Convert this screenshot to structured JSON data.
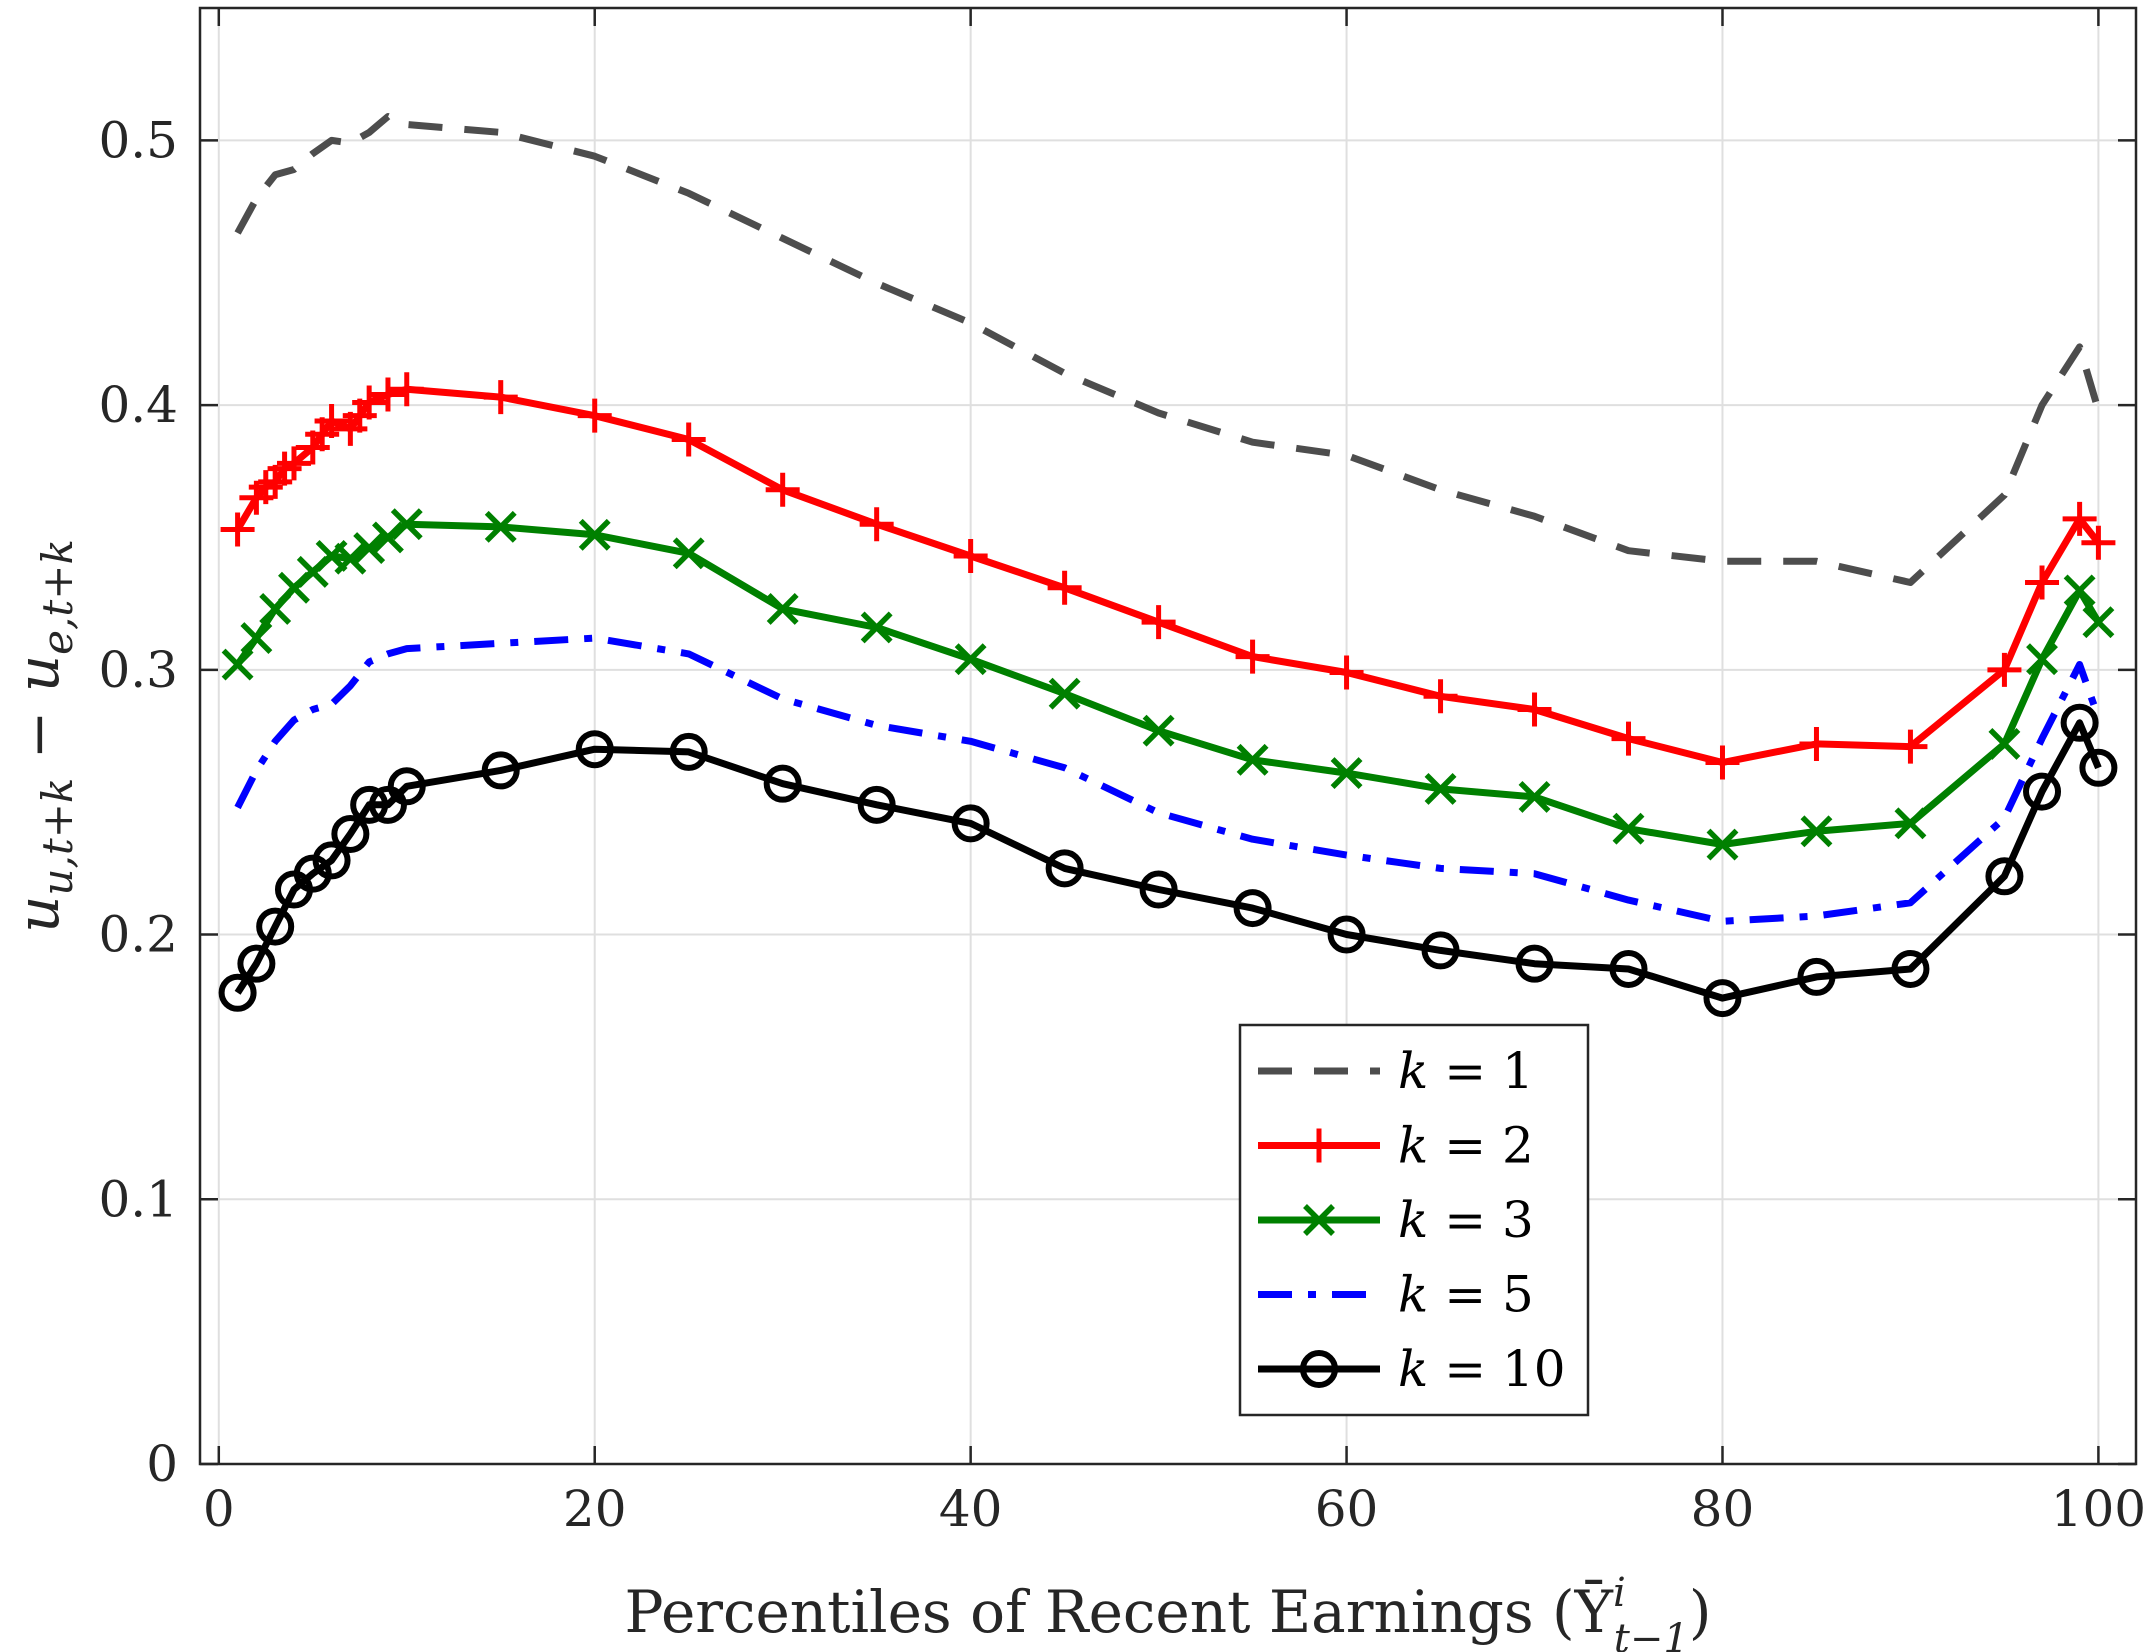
{
  "chart_data": {
    "type": "line",
    "xlabel": "Percentiles of Recent Earnings (Ȳ",
    "xlabel_sup": "i",
    "xlabel_sub": "t−1",
    "xlabel_close": ")",
    "ylabel": "u_{u,t+k} − u_{e,t+k}",
    "ylabel_parts": [
      "u",
      "u,t+k",
      " − ",
      "u",
      "e,t+k"
    ],
    "xlim": [
      -1,
      102
    ],
    "ylim": [
      0,
      0.55
    ],
    "xticks": [
      0,
      20,
      40,
      60,
      80,
      100
    ],
    "yticks": [
      0,
      0.1,
      0.2,
      0.3,
      0.4,
      0.5
    ],
    "ytick_labels": [
      "0",
      "0.1",
      "0.2",
      "0.3",
      "0.4",
      "0.5"
    ],
    "grid": true,
    "legend_position": "lower-center-right",
    "series": [
      {
        "name": "k = 1",
        "legend_var": "k",
        "legend_eq": " = 1",
        "color": "#4d4d4d",
        "style": "dashed",
        "marker": "none",
        "x": [
          1,
          2,
          3,
          4,
          5,
          6,
          7,
          8,
          9,
          10,
          15,
          20,
          25,
          30,
          35,
          40,
          45,
          50,
          55,
          60,
          65,
          70,
          75,
          80,
          85,
          90,
          95,
          97,
          99,
          100
        ],
        "y": [
          0.465,
          0.478,
          0.487,
          0.489,
          0.495,
          0.5,
          0.499,
          0.503,
          0.509,
          0.506,
          0.503,
          0.494,
          0.48,
          0.463,
          0.446,
          0.431,
          0.412,
          0.397,
          0.386,
          0.381,
          0.368,
          0.358,
          0.345,
          0.341,
          0.341,
          0.333,
          0.366,
          0.4,
          0.422,
          0.398
        ]
      },
      {
        "name": "k = 2",
        "legend_var": "k",
        "legend_eq": " = 2",
        "color": "#ff0000",
        "style": "solid",
        "marker": "plus",
        "x": [
          1,
          2,
          2.5,
          3,
          3.5,
          4,
          5,
          5.5,
          6,
          7,
          7.5,
          8,
          9,
          10,
          15,
          20,
          25,
          30,
          35,
          40,
          45,
          50,
          55,
          60,
          65,
          70,
          75,
          80,
          85,
          90,
          95,
          97,
          99,
          100
        ],
        "y": [
          0.353,
          0.365,
          0.369,
          0.371,
          0.376,
          0.378,
          0.384,
          0.389,
          0.394,
          0.391,
          0.396,
          0.401,
          0.404,
          0.406,
          0.403,
          0.396,
          0.387,
          0.368,
          0.355,
          0.343,
          0.331,
          0.318,
          0.305,
          0.299,
          0.29,
          0.285,
          0.274,
          0.265,
          0.272,
          0.271,
          0.3,
          0.333,
          0.357,
          0.348
        ]
      },
      {
        "name": "k = 3",
        "legend_var": "k",
        "legend_eq": " = 3",
        "color": "#008000",
        "style": "solid",
        "marker": "x",
        "x": [
          1,
          2,
          3,
          4,
          5,
          6,
          7,
          8,
          9,
          10,
          15,
          20,
          25,
          30,
          35,
          40,
          45,
          50,
          55,
          60,
          65,
          70,
          75,
          80,
          85,
          90,
          95,
          97,
          99,
          100
        ],
        "y": [
          0.302,
          0.312,
          0.323,
          0.331,
          0.337,
          0.343,
          0.342,
          0.346,
          0.35,
          0.355,
          0.354,
          0.351,
          0.344,
          0.323,
          0.316,
          0.304,
          0.291,
          0.277,
          0.266,
          0.261,
          0.255,
          0.252,
          0.24,
          0.234,
          0.239,
          0.242,
          0.272,
          0.304,
          0.33,
          0.318
        ]
      },
      {
        "name": "k = 5",
        "legend_var": "k",
        "legend_eq": " = 5",
        "color": "#0000ff",
        "style": "dashdot",
        "marker": "none",
        "x": [
          1,
          2,
          3,
          4,
          5,
          6,
          7,
          8,
          9,
          10,
          15,
          20,
          25,
          30,
          35,
          40,
          45,
          50,
          55,
          60,
          65,
          70,
          75,
          80,
          85,
          90,
          95,
          97,
          99,
          100
        ],
        "y": [
          0.248,
          0.262,
          0.273,
          0.281,
          0.285,
          0.287,
          0.294,
          0.303,
          0.306,
          0.308,
          0.31,
          0.312,
          0.306,
          0.289,
          0.279,
          0.273,
          0.263,
          0.246,
          0.236,
          0.23,
          0.225,
          0.223,
          0.213,
          0.205,
          0.207,
          0.212,
          0.244,
          0.274,
          0.302,
          0.282
        ]
      },
      {
        "name": "k = 10",
        "legend_var": "k",
        "legend_eq": " = 10",
        "color": "#000000",
        "style": "solid",
        "marker": "circle",
        "x": [
          1,
          2,
          3,
          4,
          5,
          6,
          7,
          8,
          9,
          10,
          15,
          20,
          25,
          30,
          35,
          40,
          45,
          50,
          55,
          60,
          65,
          70,
          75,
          80,
          85,
          90,
          95,
          97,
          99,
          100
        ],
        "y": [
          0.178,
          0.189,
          0.203,
          0.217,
          0.223,
          0.228,
          0.238,
          0.249,
          0.249,
          0.256,
          0.262,
          0.27,
          0.269,
          0.257,
          0.249,
          0.242,
          0.225,
          0.217,
          0.21,
          0.2,
          0.194,
          0.189,
          0.187,
          0.176,
          0.184,
          0.187,
          0.222,
          0.254,
          0.28,
          0.263
        ]
      }
    ]
  }
}
